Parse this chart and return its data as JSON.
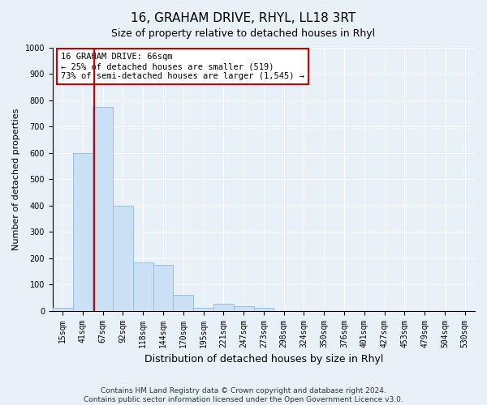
{
  "title": "16, GRAHAM DRIVE, RHYL, LL18 3RT",
  "subtitle": "Size of property relative to detached houses in Rhyl",
  "xlabel": "Distribution of detached houses by size in Rhyl",
  "ylabel": "Number of detached properties",
  "footer_line1": "Contains HM Land Registry data © Crown copyright and database right 2024.",
  "footer_line2": "Contains public sector information licensed under the Open Government Licence v3.0.",
  "bar_labels": [
    "15sqm",
    "41sqm",
    "67sqm",
    "92sqm",
    "118sqm",
    "144sqm",
    "170sqm",
    "195sqm",
    "221sqm",
    "247sqm",
    "273sqm",
    "298sqm",
    "324sqm",
    "350sqm",
    "376sqm",
    "401sqm",
    "427sqm",
    "453sqm",
    "479sqm",
    "504sqm",
    "530sqm"
  ],
  "bar_values": [
    12,
    600,
    775,
    400,
    185,
    175,
    60,
    10,
    28,
    18,
    12,
    0,
    0,
    0,
    0,
    0,
    0,
    0,
    0,
    0,
    0
  ],
  "bar_color": "#cce0f5",
  "bar_edge_color": "#9bbfdd",
  "vline_x_index": 1.55,
  "vline_color": "#cc0000",
  "ylim_max": 1000,
  "yticks": [
    0,
    100,
    200,
    300,
    400,
    500,
    600,
    700,
    800,
    900,
    1000
  ],
  "annotation_text": "16 GRAHAM DRIVE: 66sqm\n← 25% of detached houses are smaller (519)\n73% of semi-detached houses are larger (1,545) →",
  "annotation_box_color": "#ffffff",
  "annotation_border_color": "#cc0000",
  "bg_color": "#e8f0f8",
  "plot_bg_color": "#e8f0f8",
  "grid_color": "#ffffff",
  "title_fontsize": 11,
  "subtitle_fontsize": 9,
  "ylabel_fontsize": 8,
  "xlabel_fontsize": 9,
  "tick_fontsize": 7,
  "annotation_fontsize": 7.5,
  "footer_fontsize": 6.5
}
